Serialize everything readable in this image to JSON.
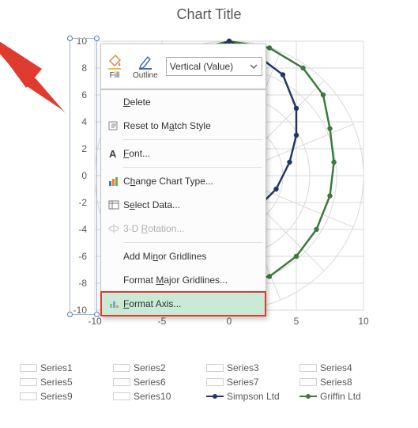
{
  "chartTitle": "Chart Title",
  "axis": {
    "yticks": [
      10,
      8,
      6,
      4,
      2,
      0,
      -2,
      -4,
      -6,
      -8,
      -10
    ],
    "xticks": [
      -10,
      -5,
      0,
      5,
      10
    ],
    "ylim": [
      -10,
      10
    ],
    "xlim": [
      -10,
      10
    ],
    "grid_color": "#d9d9d9"
  },
  "miniToolbar": {
    "fillLabel": "Fill",
    "outlineLabel": "Outline",
    "comboSelected": "Vertical (Value)"
  },
  "contextMenu": {
    "delete": "Delete",
    "reset": "Reset to Match Style",
    "font": "Font...",
    "changeType": "Change Chart Type...",
    "selectData": "Select Data...",
    "rotation3d": "3-D Rotation...",
    "addMinor": "Add Minor Gridlines",
    "formatMajor": "Format Major Gridlines...",
    "formatAxis": "Format Axis..."
  },
  "legend": {
    "series": [
      "Series1",
      "Series2",
      "Series3",
      "Series4",
      "Series5",
      "Series6",
      "Series7",
      "Series8",
      "Series9",
      "Series10"
    ],
    "named": [
      {
        "label": "Simpson Ltd",
        "color": "#1f3864"
      },
      {
        "label": "Griffin Ltd",
        "color": "#3b7a3b"
      }
    ]
  },
  "radarSeries": {
    "type": "radar",
    "background_color": "#ffffff",
    "simpson": {
      "color": "#1f3864",
      "stroke_width": 2.5,
      "marker": "circle",
      "points_approx": [
        [
          0,
          10
        ],
        [
          2,
          9
        ],
        [
          4,
          7.5
        ],
        [
          5,
          5
        ],
        [
          5,
          3
        ],
        [
          4.5,
          1
        ],
        [
          3.5,
          -1
        ],
        [
          2,
          -2.5
        ],
        [
          0,
          -3.5
        ],
        [
          -2,
          -3.2
        ],
        [
          -3.5,
          -2
        ],
        [
          -5,
          0
        ],
        [
          -5.5,
          2
        ],
        [
          -5,
          4.5
        ],
        [
          -4,
          7
        ],
        [
          -2,
          9
        ]
      ]
    },
    "griffin": {
      "color": "#3b7a3b",
      "stroke_width": 2.5,
      "marker": "circle",
      "points_approx": [
        [
          0,
          10
        ],
        [
          3,
          9.5
        ],
        [
          5.5,
          8
        ],
        [
          7,
          6
        ],
        [
          7.5,
          3.5
        ],
        [
          7.8,
          1
        ],
        [
          7.5,
          -1.5
        ],
        [
          6.5,
          -4
        ],
        [
          5,
          -6
        ],
        [
          3,
          -7.5
        ],
        [
          0,
          -8
        ],
        [
          -2.5,
          -7.5
        ],
        [
          -5,
          -6
        ],
        [
          -6.5,
          -4
        ],
        [
          -7,
          -1.5
        ],
        [
          -7,
          1
        ],
        [
          -6.5,
          3.5
        ],
        [
          -5.5,
          6
        ],
        [
          -4,
          8
        ],
        [
          -2,
          9.5
        ]
      ]
    }
  },
  "arrow_color": "#e03b2f",
  "highlight_bg": "#c8ead6"
}
